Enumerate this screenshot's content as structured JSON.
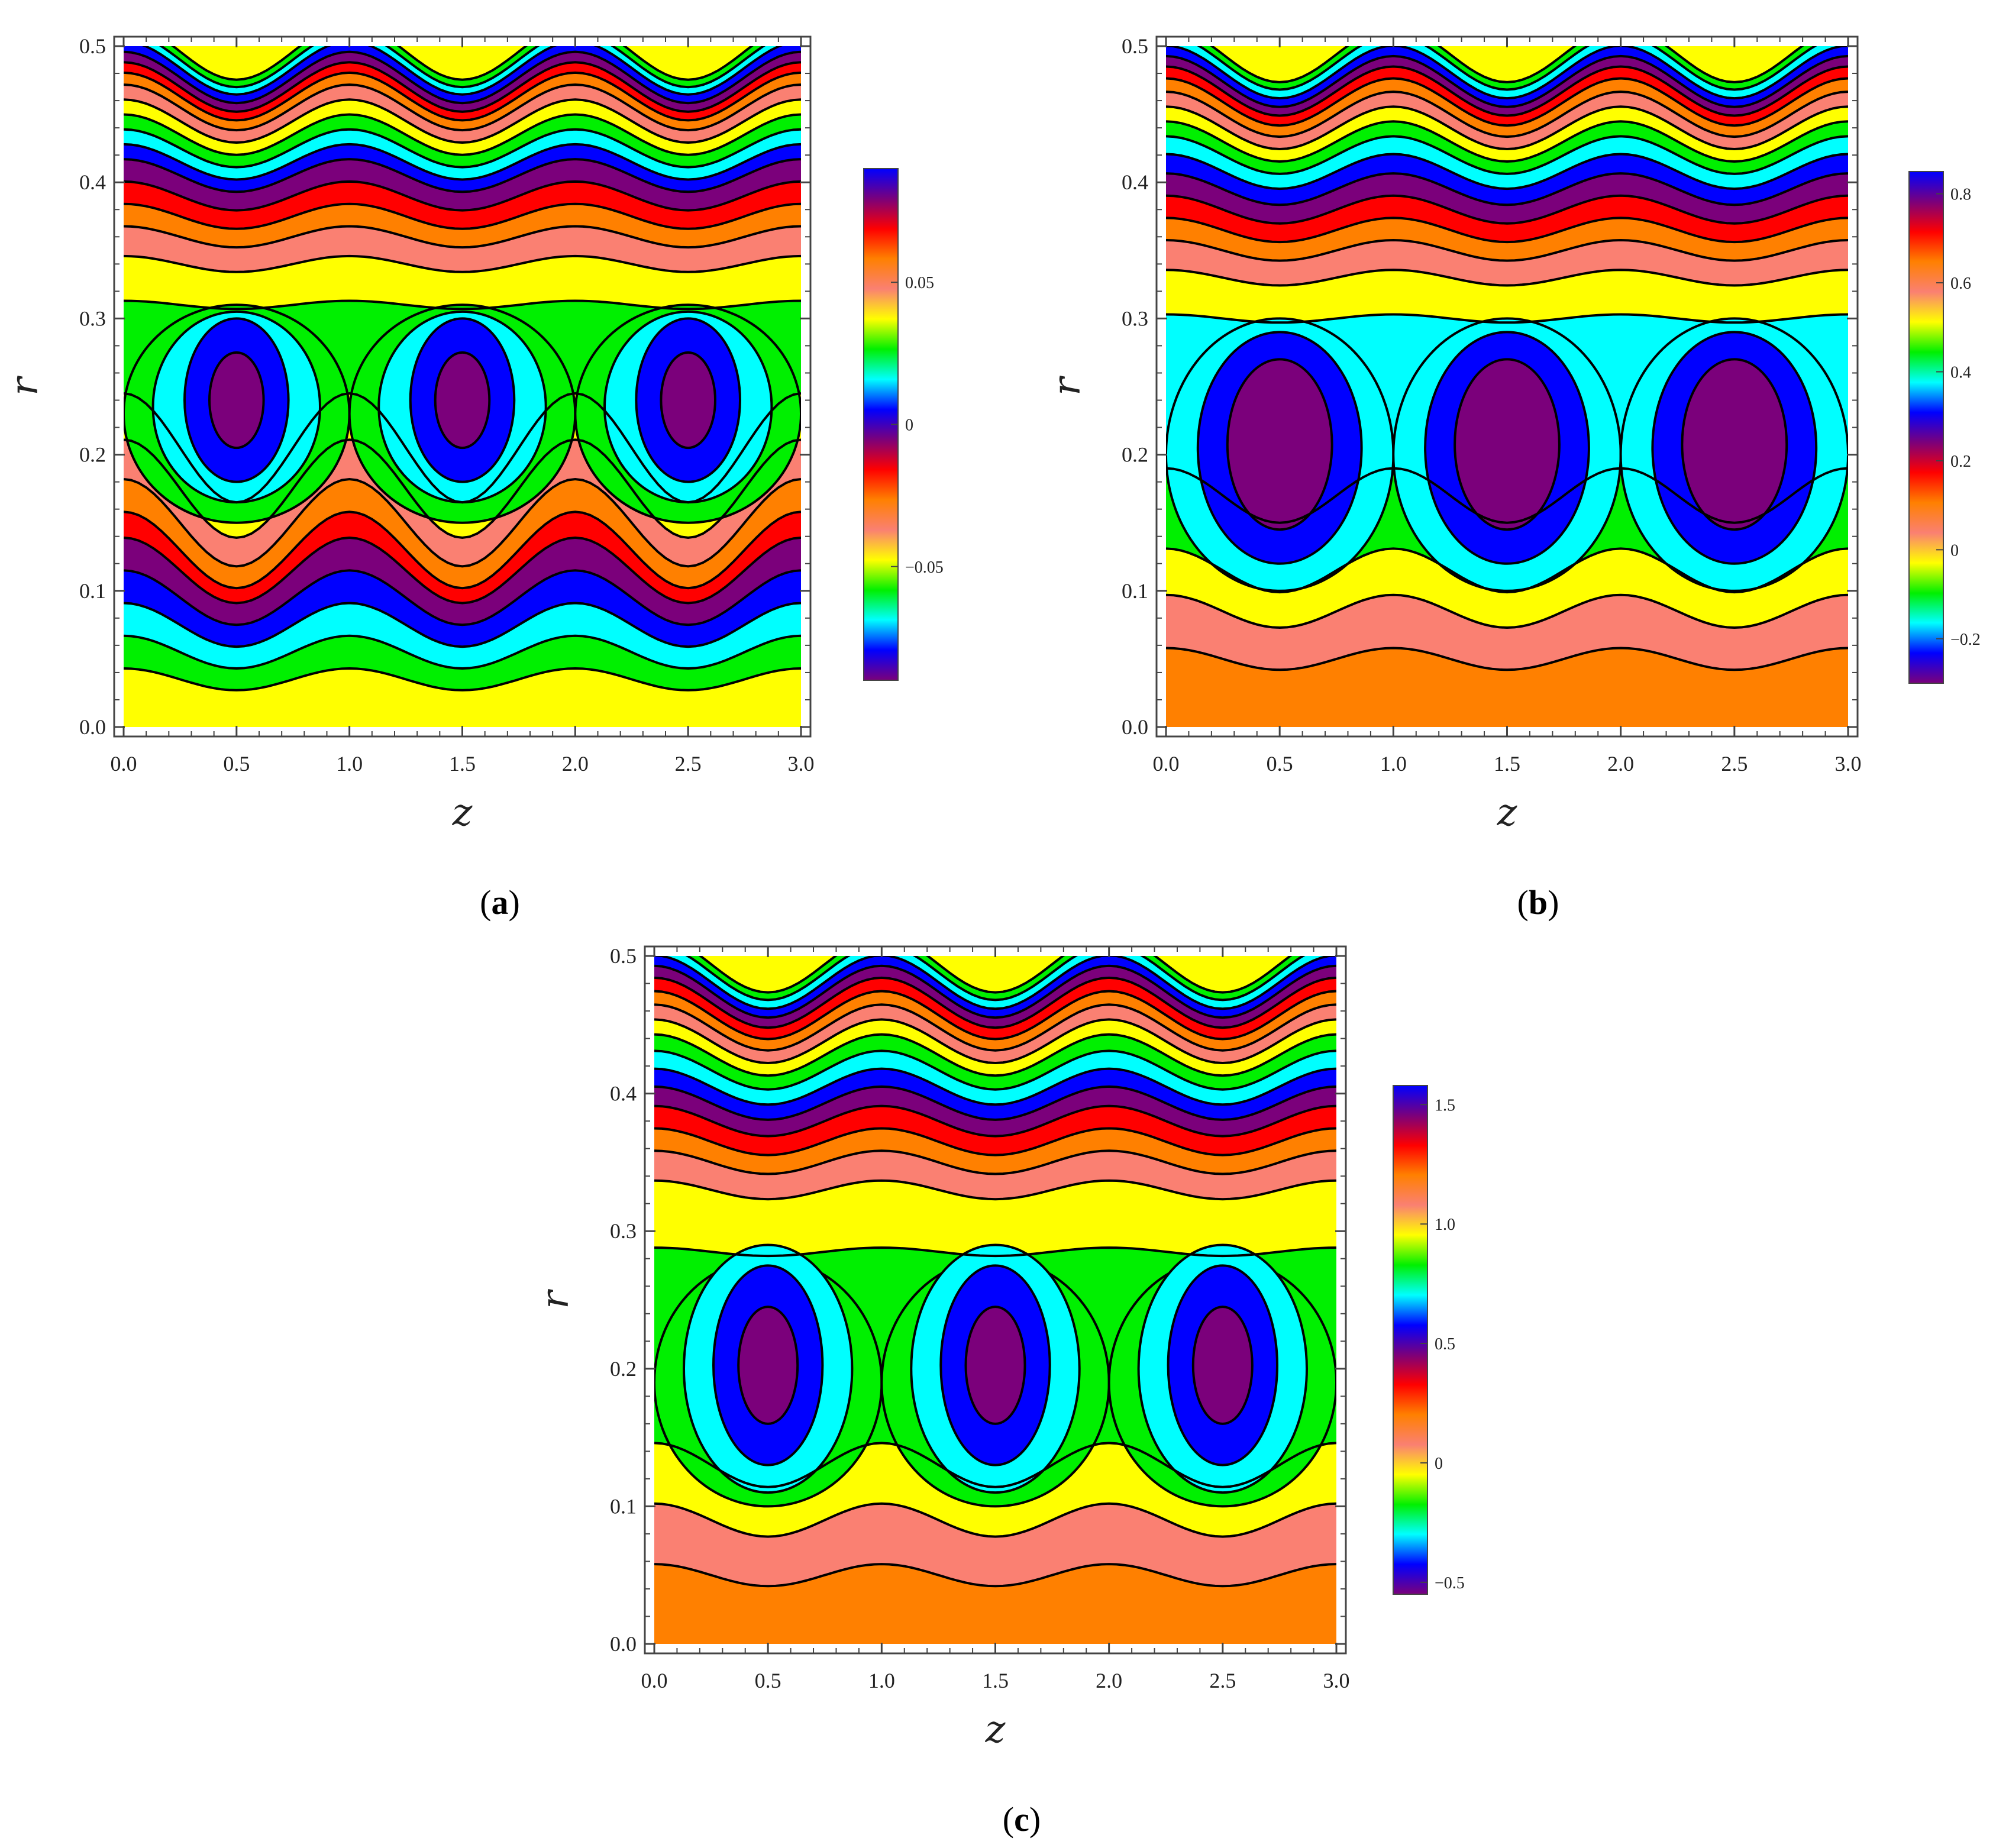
{
  "palette": {
    "yellow": "#ffff00",
    "green": "#00f000",
    "cyan": "#00ffff",
    "blue": "#0000ff",
    "purple": "#7b007b",
    "red": "#ff0000",
    "orange": "#ff8000",
    "salmon": "#fa8072",
    "contour_line": "#000000"
  },
  "chart_data": [
    {
      "panel_label": "a",
      "type": "heatmap",
      "subtype": "contour",
      "xlabel": "z",
      "ylabel": "r",
      "xlim": [
        0,
        3
      ],
      "ylim": [
        0,
        0.5
      ],
      "x_ticks": [
        "0.0",
        "0.5",
        "1.0",
        "1.5",
        "2.0",
        "2.5",
        "3.0"
      ],
      "y_ticks": [
        "0.0",
        "0.1",
        "0.2",
        "0.3",
        "0.4",
        "0.5"
      ],
      "vortex_centers": [
        {
          "z": 0.5,
          "r": 0.24
        },
        {
          "z": 1.5,
          "r": 0.24
        },
        {
          "z": 2.5,
          "r": 0.24
        }
      ],
      "vortex_rings": [
        {
          "color": "green",
          "level_z_halfwidth": 0.5,
          "r_low": 0.15,
          "r_high": 0.31
        },
        {
          "color": "cyan",
          "level_z_halfwidth": 0.37,
          "r_low": 0.165,
          "r_high": 0.305
        },
        {
          "color": "blue",
          "level_z_halfwidth": 0.23,
          "r_low": 0.18,
          "r_high": 0.3
        },
        {
          "color": "purple",
          "level_z_halfwidth": 0.12,
          "r_low": 0.205,
          "r_high": 0.275
        }
      ],
      "lower_bands": [
        {
          "r": 0.035,
          "color": "green"
        },
        {
          "r": 0.055,
          "color": "cyan"
        },
        {
          "r": 0.075,
          "color": "blue"
        },
        {
          "r": 0.095,
          "color": "purple"
        },
        {
          "r": 0.115,
          "color": "red"
        },
        {
          "r": 0.13,
          "color": "orange"
        },
        {
          "r": 0.15,
          "color": "salmon"
        },
        {
          "r": 0.175,
          "color": "yellow"
        },
        {
          "r": 0.205,
          "color": "green"
        }
      ],
      "lower_fill": "yellow",
      "upper_bands": [
        {
          "r": 0.31,
          "color": "yellow"
        },
        {
          "r": 0.34,
          "color": "salmon"
        },
        {
          "r": 0.36,
          "color": "orange"
        },
        {
          "r": 0.375,
          "color": "red"
        },
        {
          "r": 0.39,
          "color": "purple"
        },
        {
          "r": 0.405,
          "color": "blue"
        },
        {
          "r": 0.415,
          "color": "cyan"
        },
        {
          "r": 0.425,
          "color": "green"
        },
        {
          "r": 0.435,
          "color": "yellow"
        },
        {
          "r": 0.445,
          "color": "salmon"
        },
        {
          "r": 0.455,
          "color": "orange"
        },
        {
          "r": 0.463,
          "color": "red"
        },
        {
          "r": 0.47,
          "color": "purple"
        },
        {
          "r": 0.477,
          "color": "blue"
        },
        {
          "r": 0.484,
          "color": "cyan"
        },
        {
          "r": 0.49,
          "color": "green"
        },
        {
          "r": 0.496,
          "color": "yellow"
        }
      ],
      "colorbar": {
        "ticks": [
          {
            "value": -0.05,
            "label": "−0.05"
          },
          {
            "value": 0,
            "label": "0"
          },
          {
            "value": 0.05,
            "label": "0.05"
          }
        ],
        "range": [
          -0.09,
          0.09
        ]
      }
    },
    {
      "panel_label": "b",
      "type": "heatmap",
      "subtype": "contour",
      "xlabel": "z",
      "ylabel": "r",
      "xlim": [
        0,
        3
      ],
      "ylim": [
        0,
        0.5
      ],
      "x_ticks": [
        "0.0",
        "0.5",
        "1.0",
        "1.5",
        "2.0",
        "2.5",
        "3.0"
      ],
      "y_ticks": [
        "0.0",
        "0.1",
        "0.2",
        "0.3",
        "0.4",
        "0.5"
      ],
      "vortex_centers": [
        {
          "z": 0.5,
          "r": 0.205
        },
        {
          "z": 1.5,
          "r": 0.205
        },
        {
          "z": 2.5,
          "r": 0.205
        }
      ],
      "vortex_rings": [
        {
          "color": "cyan",
          "level_z_halfwidth": 0.5,
          "r_low": 0.1,
          "r_high": 0.3
        },
        {
          "color": "blue",
          "level_z_halfwidth": 0.36,
          "r_low": 0.12,
          "r_high": 0.29
        },
        {
          "color": "purple",
          "level_z_halfwidth": 0.23,
          "r_low": 0.145,
          "r_high": 0.27
        }
      ],
      "lower_bands": [
        {
          "r": 0.05,
          "color": "salmon"
        },
        {
          "r": 0.085,
          "color": "yellow"
        },
        {
          "r": 0.115,
          "color": "green"
        },
        {
          "r": 0.17,
          "color": "cyan"
        }
      ],
      "lower_fill": "orange",
      "upper_bands": [
        {
          "r": 0.3,
          "color": "yellow"
        },
        {
          "r": 0.33,
          "color": "salmon"
        },
        {
          "r": 0.35,
          "color": "orange"
        },
        {
          "r": 0.365,
          "color": "red"
        },
        {
          "r": 0.38,
          "color": "purple"
        },
        {
          "r": 0.395,
          "color": "blue"
        },
        {
          "r": 0.408,
          "color": "cyan"
        },
        {
          "r": 0.42,
          "color": "green"
        },
        {
          "r": 0.43,
          "color": "yellow"
        },
        {
          "r": 0.44,
          "color": "salmon"
        },
        {
          "r": 0.45,
          "color": "orange"
        },
        {
          "r": 0.459,
          "color": "red"
        },
        {
          "r": 0.467,
          "color": "purple"
        },
        {
          "r": 0.474,
          "color": "blue"
        },
        {
          "r": 0.481,
          "color": "cyan"
        },
        {
          "r": 0.488,
          "color": "green"
        },
        {
          "r": 0.494,
          "color": "yellow"
        }
      ],
      "colorbar": {
        "ticks": [
          {
            "value": -0.2,
            "label": "−0.2"
          },
          {
            "value": 0,
            "label": "0"
          },
          {
            "value": 0.2,
            "label": "0.2"
          },
          {
            "value": 0.4,
            "label": "0.4"
          },
          {
            "value": 0.6,
            "label": "0.6"
          },
          {
            "value": 0.8,
            "label": "0.8"
          }
        ],
        "range": [
          -0.3,
          0.85
        ]
      }
    },
    {
      "panel_label": "c",
      "type": "heatmap",
      "subtype": "contour",
      "xlabel": "z",
      "ylabel": "r",
      "xlim": [
        0,
        3
      ],
      "ylim": [
        0,
        0.5
      ],
      "x_ticks": [
        "0.0",
        "0.5",
        "1.0",
        "1.5",
        "2.0",
        "2.5",
        "3.0"
      ],
      "y_ticks": [
        "0.0",
        "0.1",
        "0.2",
        "0.3",
        "0.4",
        "0.5"
      ],
      "vortex_centers": [
        {
          "z": 0.5,
          "r": 0.2
        },
        {
          "z": 1.5,
          "r": 0.2
        },
        {
          "z": 2.5,
          "r": 0.2
        }
      ],
      "vortex_rings": [
        {
          "color": "green",
          "level_z_halfwidth": 0.5,
          "r_low": 0.1,
          "r_high": 0.28
        },
        {
          "color": "cyan",
          "level_z_halfwidth": 0.37,
          "r_low": 0.11,
          "r_high": 0.29
        },
        {
          "color": "blue",
          "level_z_halfwidth": 0.24,
          "r_low": 0.13,
          "r_high": 0.275
        },
        {
          "color": "purple",
          "level_z_halfwidth": 0.13,
          "r_low": 0.16,
          "r_high": 0.245
        }
      ],
      "lower_bands": [
        {
          "r": 0.05,
          "color": "salmon"
        },
        {
          "r": 0.09,
          "color": "yellow"
        },
        {
          "r": 0.13,
          "color": "green"
        }
      ],
      "lower_fill": "orange",
      "upper_bands": [
        {
          "r": 0.285,
          "color": "yellow"
        },
        {
          "r": 0.33,
          "color": "salmon"
        },
        {
          "r": 0.35,
          "color": "orange"
        },
        {
          "r": 0.365,
          "color": "red"
        },
        {
          "r": 0.38,
          "color": "purple"
        },
        {
          "r": 0.393,
          "color": "blue"
        },
        {
          "r": 0.405,
          "color": "cyan"
        },
        {
          "r": 0.417,
          "color": "green"
        },
        {
          "r": 0.428,
          "color": "yellow"
        },
        {
          "r": 0.438,
          "color": "salmon"
        },
        {
          "r": 0.448,
          "color": "orange"
        },
        {
          "r": 0.457,
          "color": "red"
        },
        {
          "r": 0.466,
          "color": "purple"
        },
        {
          "r": 0.474,
          "color": "blue"
        },
        {
          "r": 0.481,
          "color": "cyan"
        },
        {
          "r": 0.488,
          "color": "green"
        },
        {
          "r": 0.494,
          "color": "yellow"
        }
      ],
      "colorbar": {
        "ticks": [
          {
            "value": -0.5,
            "label": "−0.5"
          },
          {
            "value": 0,
            "label": "0"
          },
          {
            "value": 0.5,
            "label": "0.5"
          },
          {
            "value": 1.0,
            "label": "1.0"
          },
          {
            "value": 1.5,
            "label": "1.5"
          }
        ],
        "range": [
          -0.55,
          1.58
        ]
      }
    }
  ],
  "captions": [
    {
      "open": "(",
      "letter": "a",
      "close": ")"
    },
    {
      "open": "(",
      "letter": "b",
      "close": ")"
    },
    {
      "open": "(",
      "letter": "c",
      "close": ")"
    }
  ]
}
